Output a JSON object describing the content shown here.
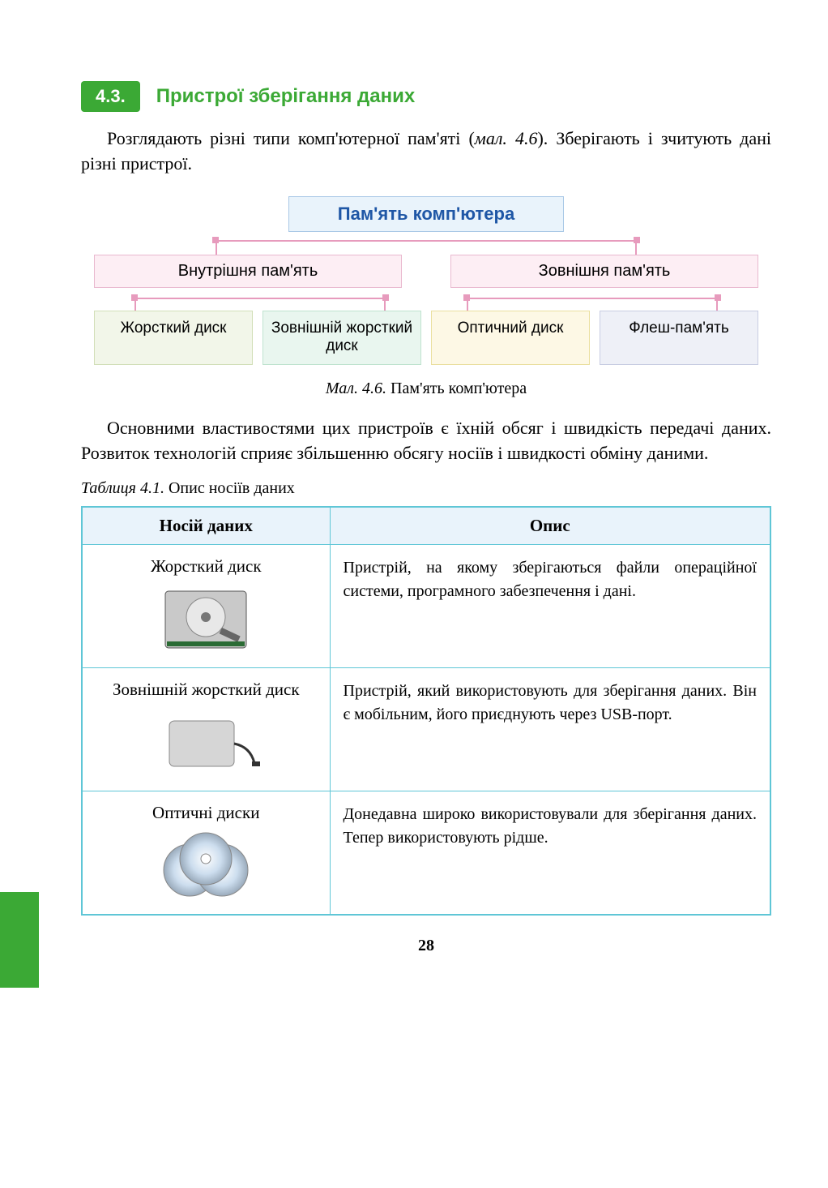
{
  "section": {
    "number": "4.3.",
    "title": "Пристрої зберігання даних"
  },
  "intro_pre": "Розглядають різні типи комп'ютерної пам'яті (",
  "intro_ref": "мал. 4.6",
  "intro_post": "). Зберігають і зчитують дані різні пристрої.",
  "diagram": {
    "root": "Пам'ять комп'ютера",
    "level2": [
      {
        "label": "Внутрішня пам'ять"
      },
      {
        "label": "Зовнішня пам'ять"
      }
    ],
    "level3": [
      {
        "label": "Жорсткий диск",
        "bg": "#f2f6e9",
        "border": "#d2dfb8"
      },
      {
        "label": "Зовнішній жорсткий диск",
        "bg": "#e9f6ef",
        "border": "#bfe3cf"
      },
      {
        "label": "Оптичний диск",
        "bg": "#fdf8e5",
        "border": "#eadf9f"
      },
      {
        "label": "Флеш-пам'ять",
        "bg": "#eef0f7",
        "border": "#c8cde2"
      }
    ],
    "caption_fig": "Мал. 4.6.",
    "caption_text": " Пам'ять комп'ютера"
  },
  "para2": "Основними властивостями цих пристроїв є їхній обсяг і швидкість передачі даних. Розвиток технологій сприяє збільшенню обсягу носіїв і швидкості обміну даними.",
  "table": {
    "caption_tbl": "Таблиця 4.1.",
    "caption_text": " Опис носіїв даних",
    "headers": [
      "Носій даних",
      "Опис"
    ],
    "rows": [
      {
        "name": "Жорсткий диск",
        "icon": "hdd",
        "desc": "Пристрій, на якому зберігаються файли операційної системи, програмного забезпечення і дані."
      },
      {
        "name": "Зовнішній жорсткий диск",
        "icon": "ext-hdd",
        "desc": "Пристрій, який використовують для зберігання даних. Він є мобільним, його приєднують через USB-порт."
      },
      {
        "name": "Оптичні диски",
        "icon": "cd",
        "desc": "Донедавна широко використовували для зберігання даних. Тепер використовують рідше."
      }
    ]
  },
  "page_number": "28"
}
